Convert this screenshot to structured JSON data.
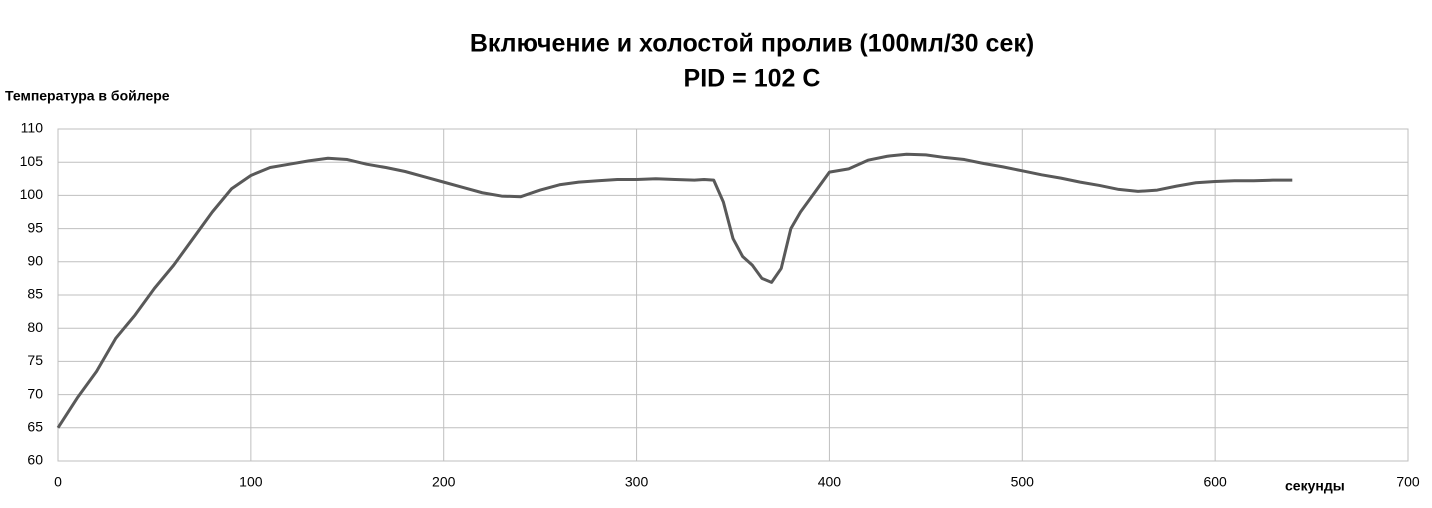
{
  "chart_data": {
    "type": "line",
    "title": "Включение и холостой пролив (100мл/30 сек)",
    "subtitle": "PID = 102 C",
    "y_label": "Температура в бойлере",
    "x_label": "секунды",
    "x": [
      0,
      10,
      20,
      30,
      40,
      50,
      60,
      70,
      80,
      90,
      100,
      110,
      120,
      130,
      140,
      150,
      160,
      170,
      180,
      190,
      200,
      210,
      220,
      230,
      240,
      250,
      260,
      270,
      280,
      290,
      300,
      310,
      320,
      330,
      335,
      340,
      345,
      350,
      355,
      360,
      365,
      370,
      375,
      380,
      385,
      390,
      395,
      400,
      410,
      420,
      430,
      440,
      450,
      460,
      470,
      480,
      490,
      500,
      510,
      520,
      530,
      540,
      550,
      560,
      570,
      580,
      590,
      600,
      610,
      620,
      630,
      640
    ],
    "series": [
      {
        "name": "Температура",
        "color": "#595959",
        "values": [
          65,
          69.5,
          73.5,
          78.5,
          82,
          86,
          89.5,
          93.5,
          97.5,
          101,
          103,
          104.2,
          104.7,
          105.2,
          105.6,
          105.4,
          104.7,
          104.2,
          103.6,
          102.8,
          102,
          101.2,
          100.4,
          99.9,
          99.8,
          100.8,
          101.6,
          102,
          102.2,
          102.4,
          102.4,
          102.5,
          102.4,
          102.3,
          102.4,
          102.3,
          99,
          93.5,
          90.8,
          89.5,
          87.5,
          86.9,
          89,
          95,
          97.5,
          99.5,
          101.5,
          103.5,
          104,
          105.3,
          105.9,
          106.2,
          106.1,
          105.7,
          105.4,
          104.8,
          104.3,
          103.7,
          103.1,
          102.6,
          102,
          101.5,
          100.9,
          100.6,
          100.8,
          101.4,
          101.9,
          102.1,
          102.2,
          102.2,
          102.3,
          102.3
        ]
      }
    ],
    "xlim": [
      0,
      700
    ],
    "xticks": [
      0,
      100,
      200,
      300,
      400,
      500,
      600,
      700
    ],
    "ylim": [
      60,
      110
    ],
    "yticks": [
      60,
      65,
      70,
      75,
      80,
      85,
      90,
      95,
      100,
      105,
      110
    ],
    "grid": true
  }
}
